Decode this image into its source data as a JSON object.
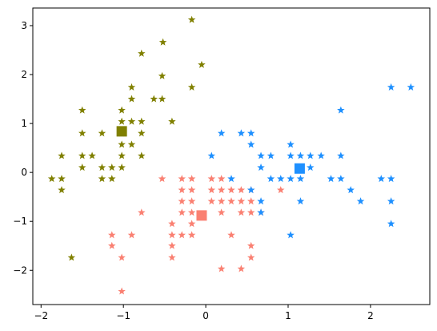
{
  "chart_data": {
    "type": "scatter",
    "title": "",
    "xlabel": "",
    "ylabel": "",
    "xlim": [
      -2.1,
      2.72
    ],
    "ylim": [
      -2.7,
      3.36
    ],
    "xticks": [
      -2,
      -1,
      0,
      1,
      2
    ],
    "yticks": [
      -2,
      -1,
      0,
      1,
      2,
      3
    ],
    "xtick_labels": [
      "−2",
      "−1",
      "0",
      "1",
      "2"
    ],
    "ytick_labels": [
      "−2",
      "−1",
      "0",
      "1",
      "2",
      "3"
    ],
    "grid": false,
    "legend": "none",
    "marker": "star",
    "series": [
      {
        "color": "#808000",
        "centroid": [
          -1.02,
          0.84
        ],
        "points": [
          [
            -0.17,
            3.12
          ],
          [
            -0.52,
            2.66
          ],
          [
            -0.78,
            2.43
          ],
          [
            -0.05,
            2.2
          ],
          [
            -0.53,
            1.97
          ],
          [
            -0.9,
            1.74
          ],
          [
            -0.17,
            1.74
          ],
          [
            -0.9,
            1.5
          ],
          [
            -0.63,
            1.5
          ],
          [
            -0.53,
            1.5
          ],
          [
            -1.5,
            1.27
          ],
          [
            -1.02,
            1.27
          ],
          [
            -0.9,
            1.04
          ],
          [
            -1.02,
            1.04
          ],
          [
            -0.78,
            1.04
          ],
          [
            -0.41,
            1.04
          ],
          [
            -1.5,
            0.8
          ],
          [
            -1.26,
            0.8
          ],
          [
            -1.02,
            0.8
          ],
          [
            -0.78,
            0.8
          ],
          [
            -1.02,
            0.57
          ],
          [
            -0.9,
            0.57
          ],
          [
            -1.02,
            0.34
          ],
          [
            -0.78,
            0.34
          ],
          [
            -1.75,
            0.34
          ],
          [
            -1.5,
            0.34
          ],
          [
            -1.38,
            0.34
          ],
          [
            -1.5,
            0.1
          ],
          [
            -1.26,
            0.1
          ],
          [
            -1.14,
            0.1
          ],
          [
            -1.02,
            0.1
          ],
          [
            -1.87,
            -0.13
          ],
          [
            -1.75,
            -0.13
          ],
          [
            -1.26,
            -0.13
          ],
          [
            -1.14,
            -0.13
          ],
          [
            -1.75,
            -0.36
          ],
          [
            -1.63,
            -1.74
          ]
        ]
      },
      {
        "color": "#fa8072",
        "centroid": [
          -0.05,
          -0.88
        ],
        "points": [
          [
            -0.53,
            -0.13
          ],
          [
            -0.29,
            -0.13
          ],
          [
            -0.17,
            -0.13
          ],
          [
            0.07,
            -0.13
          ],
          [
            0.19,
            -0.13
          ],
          [
            -0.29,
            -0.36
          ],
          [
            -0.17,
            -0.36
          ],
          [
            0.07,
            -0.36
          ],
          [
            0.19,
            -0.36
          ],
          [
            0.31,
            -0.36
          ],
          [
            0.43,
            -0.36
          ],
          [
            0.55,
            -0.36
          ],
          [
            -0.29,
            -0.59
          ],
          [
            -0.17,
            -0.59
          ],
          [
            0.07,
            -0.59
          ],
          [
            0.19,
            -0.59
          ],
          [
            0.31,
            -0.59
          ],
          [
            0.43,
            -0.59
          ],
          [
            0.55,
            -0.59
          ],
          [
            -0.29,
            -0.82
          ],
          [
            -0.17,
            -0.82
          ],
          [
            -0.78,
            -0.82
          ],
          [
            0.19,
            -0.82
          ],
          [
            0.43,
            -0.82
          ],
          [
            0.55,
            -0.82
          ],
          [
            0.67,
            -0.82
          ],
          [
            -0.41,
            -1.05
          ],
          [
            -0.17,
            -1.05
          ],
          [
            -0.41,
            -1.28
          ],
          [
            -0.29,
            -1.28
          ],
          [
            -0.17,
            -1.28
          ],
          [
            -1.14,
            -1.28
          ],
          [
            -0.9,
            -1.28
          ],
          [
            0.31,
            -1.28
          ],
          [
            -0.41,
            -1.5
          ],
          [
            -1.14,
            -1.5
          ],
          [
            0.55,
            -1.5
          ],
          [
            -0.41,
            -1.74
          ],
          [
            -1.02,
            -1.74
          ],
          [
            0.55,
            -1.74
          ],
          [
            0.19,
            -1.97
          ],
          [
            0.43,
            -1.97
          ],
          [
            -1.02,
            -2.43
          ],
          [
            0.91,
            -0.36
          ]
        ]
      },
      {
        "color": "#1e90ff",
        "centroid": [
          1.14,
          0.08
        ],
        "points": [
          [
            2.25,
            1.74
          ],
          [
            2.49,
            1.74
          ],
          [
            1.64,
            1.27
          ],
          [
            0.19,
            0.8
          ],
          [
            0.43,
            0.8
          ],
          [
            0.55,
            0.8
          ],
          [
            0.55,
            0.57
          ],
          [
            1.03,
            0.57
          ],
          [
            0.07,
            0.34
          ],
          [
            0.67,
            0.34
          ],
          [
            0.79,
            0.34
          ],
          [
            1.03,
            0.34
          ],
          [
            1.15,
            0.34
          ],
          [
            1.27,
            0.34
          ],
          [
            1.4,
            0.34
          ],
          [
            1.64,
            0.34
          ],
          [
            0.67,
            0.1
          ],
          [
            1.15,
            0.1
          ],
          [
            1.27,
            0.1
          ],
          [
            0.31,
            -0.13
          ],
          [
            0.79,
            -0.13
          ],
          [
            0.91,
            -0.13
          ],
          [
            1.03,
            -0.13
          ],
          [
            1.15,
            -0.13
          ],
          [
            1.52,
            -0.13
          ],
          [
            1.64,
            -0.13
          ],
          [
            2.13,
            -0.13
          ],
          [
            2.25,
            -0.13
          ],
          [
            0.55,
            -0.36
          ],
          [
            1.76,
            -0.36
          ],
          [
            0.67,
            -0.59
          ],
          [
            1.15,
            -0.59
          ],
          [
            1.88,
            -0.59
          ],
          [
            2.25,
            -0.59
          ],
          [
            0.67,
            -0.82
          ],
          [
            2.25,
            -1.05
          ],
          [
            1.03,
            -1.28
          ]
        ]
      }
    ]
  }
}
